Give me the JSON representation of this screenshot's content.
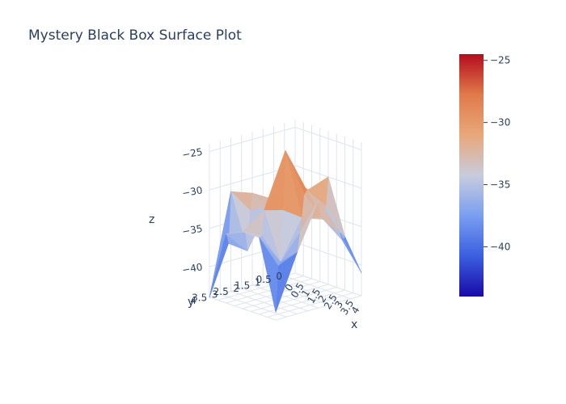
{
  "chart_data": {
    "type": "surface",
    "title": "Mystery Black Box Surface Plot",
    "xlabel": "x",
    "ylabel": "y",
    "zlabel": "z",
    "x": [
      0,
      1,
      2,
      3,
      4
    ],
    "y": [
      0,
      1,
      2,
      3,
      4
    ],
    "z": [
      [
        -40,
        -36,
        -30,
        -37,
        -41
      ],
      [
        -36,
        -30,
        -31,
        -34,
        -35
      ],
      [
        -32,
        -33,
        -25,
        -33,
        -30
      ],
      [
        -31,
        -38,
        -32,
        -38,
        -36
      ],
      [
        -44,
        -35,
        -34,
        -34,
        -43
      ]
    ],
    "xlim": [
      0,
      4
    ],
    "ylim": [
      0,
      4
    ],
    "zlim": [
      -44,
      -24
    ],
    "x_ticks": [
      "0",
      "0.5",
      "1",
      "1.5",
      "2",
      "2.5",
      "3",
      "3.5",
      "4"
    ],
    "y_ticks": [
      "0",
      "0.5",
      "1",
      "1.5",
      "2",
      "2.5",
      "3",
      "3.5",
      "4"
    ],
    "z_ticks": [
      "−25",
      "−30",
      "−35",
      "−40"
    ],
    "colorscale": [
      "#1a0aa8",
      "#3a5fe0",
      "#7a9ef0",
      "#c8ccdd",
      "#e8a77a",
      "#e07a4a",
      "#b40c1e"
    ],
    "colorbar": {
      "range": [
        -44,
        -24.5
      ],
      "ticks": [
        "−25",
        "−30",
        "−35",
        "−40"
      ]
    },
    "grid": true,
    "legend": "right"
  }
}
